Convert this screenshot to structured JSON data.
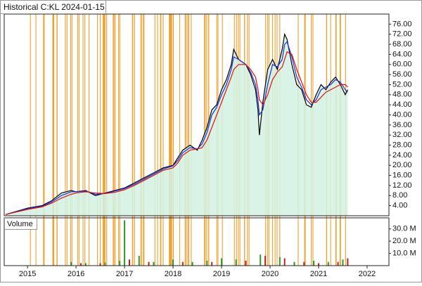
{
  "chart_data": [
    {
      "type": "line",
      "title": "Historical C:KL 2024-01-15",
      "xlim": [
        2014.52,
        2022.45
      ],
      "ylim": [
        0,
        80
      ],
      "yticks": [
        {
          "value": 4,
          "label": "4.00"
        },
        {
          "value": 8,
          "label": "8.00"
        },
        {
          "value": 12,
          "label": "12.00"
        },
        {
          "value": 16,
          "label": "16.00"
        },
        {
          "value": 20,
          "label": "20.00"
        },
        {
          "value": 24,
          "label": "24.00"
        },
        {
          "value": 28,
          "label": "28.00"
        },
        {
          "value": 32,
          "label": "32.00"
        },
        {
          "value": 36,
          "label": "36.00"
        },
        {
          "value": 40,
          "label": "40.00"
        },
        {
          "value": 44,
          "label": "44.00"
        },
        {
          "value": 48,
          "label": "48.00"
        },
        {
          "value": 52,
          "label": "52.00"
        },
        {
          "value": 56,
          "label": "56.00"
        },
        {
          "value": 60,
          "label": "60.00"
        },
        {
          "value": 64,
          "label": "64.00"
        },
        {
          "value": 68,
          "label": "68.00"
        },
        {
          "value": 72,
          "label": "72.00"
        },
        {
          "value": 76,
          "label": "76.00"
        }
      ],
      "x": [
        2014.55,
        2015.0,
        2015.3,
        2015.5,
        2015.7,
        2015.9,
        2016.0,
        2016.2,
        2016.4,
        2016.6,
        2016.8,
        2017.0,
        2017.2,
        2017.4,
        2017.6,
        2017.8,
        2018.0,
        2018.1,
        2018.2,
        2018.35,
        2018.5,
        2018.6,
        2018.7,
        2018.8,
        2018.9,
        2019.0,
        2019.1,
        2019.2,
        2019.25,
        2019.35,
        2019.5,
        2019.6,
        2019.7,
        2019.75,
        2019.78,
        2019.85,
        2019.95,
        2020.05,
        2020.15,
        2020.25,
        2020.3,
        2020.35,
        2020.45,
        2020.55,
        2020.65,
        2020.75,
        2020.85,
        2020.95,
        2021.05,
        2021.15,
        2021.25,
        2021.35,
        2021.45,
        2021.55,
        2021.6
      ],
      "series": [
        {
          "color": "#000000",
          "area": "#d2f2e2",
          "values": [
            0.5,
            3,
            4,
            6,
            9,
            10,
            9.5,
            10,
            8,
            9,
            10,
            11,
            13,
            15,
            17,
            19,
            20,
            23,
            26,
            28,
            26,
            30,
            35,
            42,
            44,
            50,
            54,
            60,
            66,
            62,
            60,
            56,
            50,
            42,
            32,
            45,
            58,
            62,
            58,
            66,
            72,
            70,
            60,
            52,
            50,
            44,
            43,
            48,
            52,
            50,
            53,
            55,
            52,
            48,
            50
          ]
        },
        {
          "color": "#1a2ee0",
          "values": [
            0.5,
            2.8,
            3.8,
            5.5,
            8,
            9.5,
            9.5,
            9.8,
            8.5,
            8.8,
            9.8,
            10.8,
            12.5,
            14.5,
            16.5,
            18.5,
            19.8,
            22,
            25,
            27,
            26.5,
            28.5,
            33,
            40,
            43,
            48,
            52,
            58,
            63,
            62,
            60,
            57,
            52,
            46,
            40,
            42,
            52,
            60,
            59,
            62,
            68,
            69,
            63,
            55,
            51,
            46,
            44,
            46,
            50,
            51,
            52,
            54,
            53,
            50,
            49
          ]
        },
        {
          "color": "#e01010",
          "values": [
            0.5,
            2.5,
            3.5,
            5,
            7,
            8.5,
            9,
            9.5,
            9,
            8.8,
            9.3,
            10.3,
            12,
            14,
            16,
            18,
            19,
            21,
            24,
            26,
            26.5,
            27,
            30,
            35,
            40,
            45,
            50,
            55,
            58,
            60,
            60,
            58,
            55,
            50,
            46,
            44,
            48,
            54,
            57,
            59,
            62,
            65,
            64,
            58,
            53,
            48,
            45,
            45,
            47,
            49,
            50,
            51,
            52,
            52,
            51
          ]
        }
      ]
    },
    {
      "type": "bar",
      "title": "Volume",
      "xlim": [
        2014.52,
        2022.45
      ],
      "ylim": [
        0,
        39000000
      ],
      "xticks": [
        2015,
        2016,
        2017,
        2018,
        2019,
        2020,
        2021,
        2022
      ],
      "yticks": [
        {
          "value": 10000000,
          "label": "10.0 M"
        },
        {
          "value": 20000000,
          "label": "20.0 M"
        },
        {
          "value": 30000000,
          "label": "30.0 M"
        }
      ],
      "series": [
        {
          "color": "#2a9a2a",
          "x": [
            2015.9,
            2016.2,
            2016.6,
            2016.9,
            2017.0,
            2017.3,
            2017.6,
            2018.0,
            2018.4,
            2018.7,
            2019.0,
            2019.3,
            2019.8,
            2020.2,
            2020.5,
            2020.9,
            2021.2,
            2021.5
          ],
          "values": [
            3000000,
            2000000,
            2500000,
            4000000,
            37000000,
            8000000,
            3000000,
            5000000,
            3000000,
            4000000,
            6000000,
            5000000,
            9000000,
            7000000,
            3000000,
            4000000,
            3000000,
            5000000
          ]
        },
        {
          "color": "#c02020",
          "x": [
            2016.1,
            2016.5,
            2017.1,
            2017.5,
            2018.2,
            2018.8,
            2019.5,
            2019.9,
            2020.3,
            2020.7,
            2021.0,
            2021.4,
            2021.6
          ],
          "values": [
            2000000,
            2000000,
            5000000,
            3000000,
            3000000,
            3000000,
            4000000,
            8000000,
            6000000,
            3000000,
            2000000,
            3000000,
            6000000
          ]
        }
      ]
    }
  ]
}
